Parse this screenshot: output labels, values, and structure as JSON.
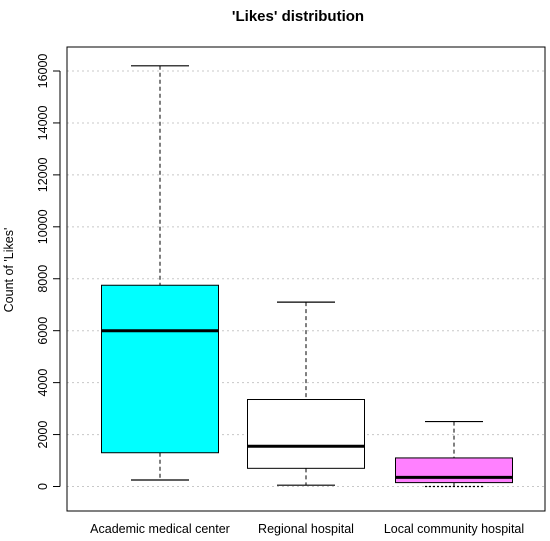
{
  "chart_data": {
    "type": "boxplot",
    "title": "'Likes' distribution",
    "xlabel": "",
    "ylabel": "Count of 'Likes'",
    "ylim": [
      -800,
      16800
    ],
    "yticks": [
      0,
      2000,
      4000,
      6000,
      8000,
      10000,
      12000,
      14000,
      16000
    ],
    "grid": "horizontal, dotted",
    "categories": [
      "Academic medical center",
      "Regional hospital",
      "Local community hospital"
    ],
    "boxes": [
      {
        "category": "Academic medical center",
        "min": 250,
        "q1": 1300,
        "median": 6000,
        "q3": 7750,
        "max": 16200,
        "color": "#00ffff"
      },
      {
        "category": "Regional hospital",
        "min": 50,
        "q1": 700,
        "median": 1550,
        "q3": 3350,
        "max": 7100,
        "color": "#ffffff"
      },
      {
        "category": "Local community hospital",
        "min": 0,
        "q1": 150,
        "median": 350,
        "q3": 1100,
        "max": 2500,
        "color": "#ff80ff"
      }
    ]
  }
}
